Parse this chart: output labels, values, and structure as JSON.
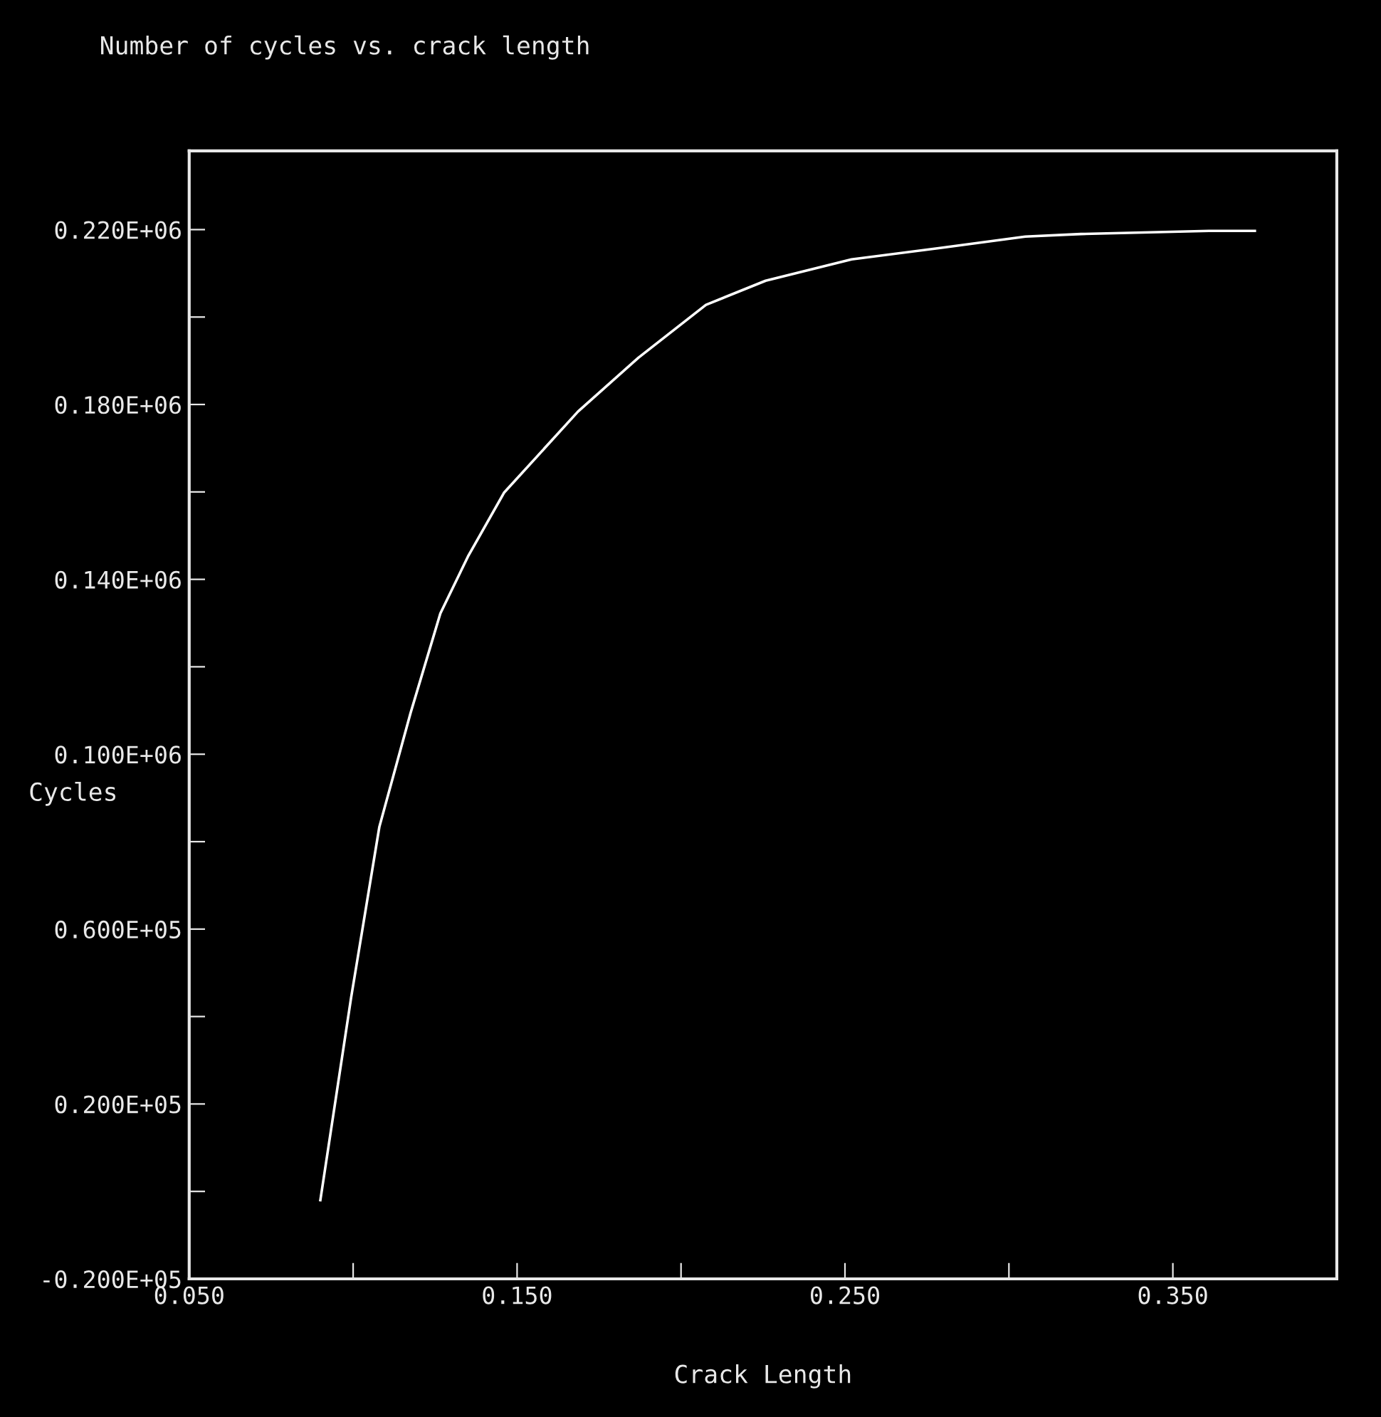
{
  "chart_data": {
    "type": "line",
    "title": "Number of cycles vs. crack length",
    "xlabel": "Crack Length",
    "ylabel": "Cycles",
    "x": [
      0.09,
      0.0994,
      0.108,
      0.1175,
      0.1266,
      0.135,
      0.146,
      0.1686,
      0.187,
      0.2076,
      0.2258,
      0.252,
      0.279,
      0.305,
      0.322,
      0.361,
      0.375
    ],
    "series": [
      {
        "color": "#ffffff",
        "values": [
          -2000,
          44400,
          83400,
          109400,
          132200,
          145200,
          159800,
          178400,
          190700,
          202800,
          208300,
          213200,
          215800,
          218400,
          219000,
          219700,
          219700
        ]
      }
    ],
    "xlim": [
      0.05,
      0.4
    ],
    "ylim": [
      -20000,
      238000
    ],
    "xticks": [
      {
        "value": 0.05,
        "label": "0.050"
      },
      {
        "value": 0.1,
        "label": null
      },
      {
        "value": 0.15,
        "label": "0.150"
      },
      {
        "value": 0.2,
        "label": null
      },
      {
        "value": 0.25,
        "label": "0.250"
      },
      {
        "value": 0.3,
        "label": null
      },
      {
        "value": 0.35,
        "label": "0.350"
      }
    ],
    "yticks": [
      {
        "value": -20000,
        "label": "-0.200E+05"
      },
      {
        "value": 0,
        "label": null
      },
      {
        "value": 20000,
        "label": "0.200E+05"
      },
      {
        "value": 40000,
        "label": null
      },
      {
        "value": 60000,
        "label": "0.600E+05"
      },
      {
        "value": 80000,
        "label": null
      },
      {
        "value": 100000,
        "label": "0.100E+06"
      },
      {
        "value": 120000,
        "label": null
      },
      {
        "value": 140000,
        "label": "0.140E+06"
      },
      {
        "value": 160000,
        "label": null
      },
      {
        "value": 180000,
        "label": "0.180E+06"
      },
      {
        "value": 200000,
        "label": null
      },
      {
        "value": 220000,
        "label": "0.220E+06"
      }
    ],
    "grid": false,
    "legend": false,
    "marker": "none",
    "line_style": "solid"
  }
}
